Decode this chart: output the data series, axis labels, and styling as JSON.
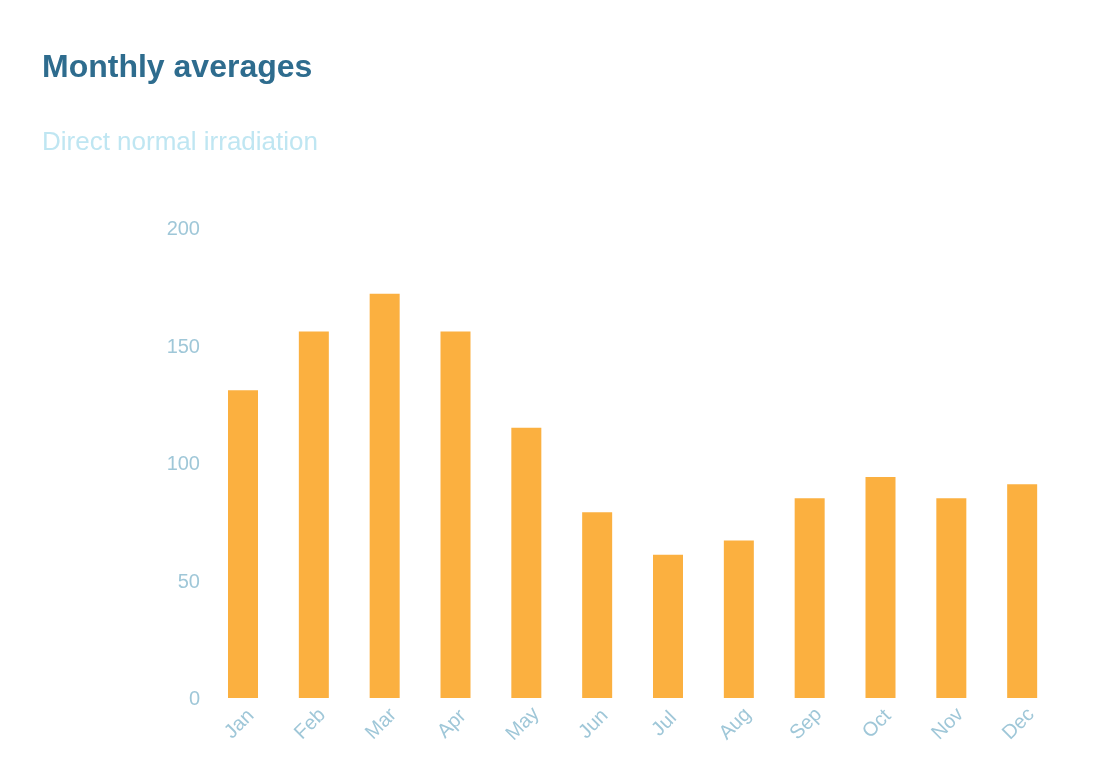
{
  "chart_data": {
    "type": "bar",
    "title": "Monthly averages",
    "subtitle": "Direct normal irradiation",
    "categories": [
      "Jan",
      "Feb",
      "Mar",
      "Apr",
      "May",
      "Jun",
      "Jul",
      "Aug",
      "Sep",
      "Oct",
      "Nov",
      "Dec"
    ],
    "values": [
      131,
      156,
      172,
      156,
      115,
      79,
      61,
      67,
      85,
      94,
      85,
      91
    ],
    "color": "#fbb040",
    "ylim": [
      0,
      200
    ],
    "yticks": [
      0,
      50,
      100,
      150,
      200
    ]
  }
}
